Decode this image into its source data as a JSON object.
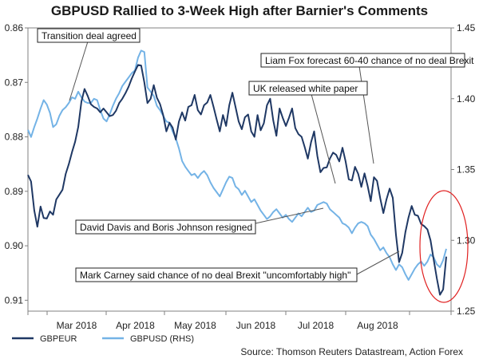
{
  "chart_data": {
    "type": "line",
    "title": "GBPUSD Rallied to 3-Week High after Barnier's Comments",
    "x_labels": [
      "Mar 2018",
      "Apr 2018",
      "May 2018",
      "Jun 2018",
      "Jul 2018",
      "Aug 2018"
    ],
    "left_axis": {
      "inverted": true,
      "ylim": [
        0.86,
        0.912
      ],
      "ticks": [
        0.86,
        0.87,
        0.88,
        0.89,
        0.9,
        0.91
      ],
      "tick_labels": [
        "0.86",
        "0.87",
        "0.88",
        "0.89",
        "0.90",
        "0.91"
      ]
    },
    "right_axis": {
      "ylim": [
        1.25,
        1.45
      ],
      "ticks": [
        1.25,
        1.3,
        1.35,
        1.4,
        1.45
      ],
      "tick_labels": [
        "1.25",
        "1.30",
        "1.35",
        "1.40",
        "1.45"
      ]
    },
    "series": [
      {
        "name": "GBPEUR",
        "axis": "left",
        "color": "#1f3864",
        "values": [
          0.887,
          0.8882,
          0.8935,
          0.8965,
          0.8928,
          0.8949,
          0.895,
          0.8937,
          0.8943,
          0.8915,
          0.8906,
          0.8897,
          0.8868,
          0.885,
          0.8828,
          0.8809,
          0.8782,
          0.8735,
          0.8712,
          0.8725,
          0.874,
          0.8745,
          0.8748,
          0.8755,
          0.8748,
          0.8755,
          0.8762,
          0.876,
          0.8752,
          0.8738,
          0.873,
          0.872,
          0.8708,
          0.8693,
          0.868,
          0.8668,
          0.8669,
          0.87,
          0.8738,
          0.873,
          0.8705,
          0.8728,
          0.874,
          0.876,
          0.879,
          0.8774,
          0.8783,
          0.8805,
          0.8772,
          0.8755,
          0.877,
          0.8745,
          0.8742,
          0.8723,
          0.8751,
          0.8759,
          0.8742,
          0.8737,
          0.8723,
          0.8745,
          0.8768,
          0.879,
          0.876,
          0.878,
          0.8742,
          0.8719,
          0.8745,
          0.8772,
          0.8786,
          0.8764,
          0.8759,
          0.879,
          0.88,
          0.876,
          0.8788,
          0.8775,
          0.8742,
          0.873,
          0.877,
          0.8798,
          0.8748,
          0.8765,
          0.878,
          0.8765,
          0.8748,
          0.8784,
          0.8795,
          0.88,
          0.8819,
          0.884,
          0.881,
          0.879,
          0.8835,
          0.8865,
          0.8857,
          0.8856,
          0.884,
          0.8829,
          0.8833,
          0.8845,
          0.882,
          0.8845,
          0.8878,
          0.888,
          0.8855,
          0.8868,
          0.8892,
          0.8867,
          0.889,
          0.8918,
          0.8874,
          0.8881,
          0.8913,
          0.894,
          0.8915,
          0.8895,
          0.8912,
          0.898,
          0.903,
          0.9013,
          0.8975,
          0.8948,
          0.8927,
          0.8943,
          0.8945,
          0.896,
          0.8964,
          0.897,
          0.899,
          0.9025,
          0.906,
          0.909,
          0.908,
          0.902
        ]
      },
      {
        "name": "GBPUSD (RHS)",
        "axis": "right",
        "color": "#74b3e6",
        "values": [
          1.378,
          1.373,
          1.38,
          1.386,
          1.393,
          1.399,
          1.396,
          1.39,
          1.38,
          1.382,
          1.388,
          1.392,
          1.394,
          1.397,
          1.401,
          1.4,
          1.405,
          1.401,
          1.398,
          1.397,
          1.397,
          1.4,
          1.399,
          1.392,
          1.386,
          1.384,
          1.389,
          1.395,
          1.4,
          1.404,
          1.409,
          1.412,
          1.415,
          1.418,
          1.42,
          1.429,
          1.434,
          1.433,
          1.408,
          1.405,
          1.402,
          1.395,
          1.392,
          1.388,
          1.384,
          1.383,
          1.377,
          1.372,
          1.365,
          1.356,
          1.352,
          1.349,
          1.346,
          1.347,
          1.344,
          1.347,
          1.349,
          1.346,
          1.341,
          1.337,
          1.334,
          1.331,
          1.336,
          1.341,
          1.345,
          1.344,
          1.338,
          1.336,
          1.332,
          1.335,
          1.331,
          1.327,
          1.329,
          1.325,
          1.321,
          1.318,
          1.315,
          1.317,
          1.32,
          1.322,
          1.319,
          1.316,
          1.318,
          1.315,
          1.313,
          1.316,
          1.319,
          1.317,
          1.32,
          1.323,
          1.32,
          1.321,
          1.325,
          1.326,
          1.327,
          1.326,
          1.322,
          1.32,
          1.318,
          1.316,
          1.312,
          1.311,
          1.309,
          1.305,
          1.309,
          1.312,
          1.313,
          1.312,
          1.31,
          1.304,
          1.301,
          1.297,
          1.293,
          1.295,
          1.291,
          1.288,
          1.283,
          1.279,
          1.283,
          1.281,
          1.276,
          1.272,
          1.276,
          1.28,
          1.283,
          1.285,
          1.282,
          1.285,
          1.29,
          1.288,
          1.283,
          1.281,
          1.286,
          1.294
        ]
      }
    ],
    "annotations": [
      "Transition deal agreed",
      "Liam Fox forecast 60-40 chance of no deal Brexit",
      "UK released white paper",
      "David Davis and Boris Johnson resigned",
      "Mark Carney said chance of no deal Brexit \"uncomfortably high\""
    ],
    "legend_position": "bottom-left",
    "source": "Source: Thomson Reuters Datastream, Action Forex"
  }
}
